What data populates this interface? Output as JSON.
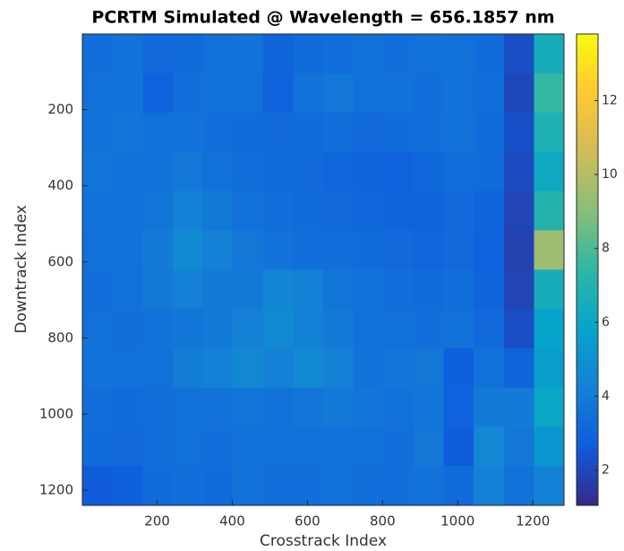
{
  "chart_data": {
    "type": "heatmap",
    "title": "PCRTM Simulated @ Wavelength = 656.1857 nm",
    "xlabel": "Crosstrack Index",
    "ylabel": "Downtrack Index",
    "xlim": [
      1,
      1283
    ],
    "ylim": [
      1,
      1240
    ],
    "xticks": [
      200,
      400,
      600,
      800,
      1000,
      1200
    ],
    "yticks": [
      200,
      400,
      600,
      800,
      1000,
      1200
    ],
    "y_reversed": true,
    "clim": [
      1.05,
      13.8
    ],
    "cticks": [
      2,
      4,
      6,
      8,
      10,
      12
    ],
    "colormap": [
      "#352a87",
      "#0f5cdd",
      "#1481d6",
      "#06a4ca",
      "#2eb7a4",
      "#87bf77",
      "#d1bb59",
      "#fec832",
      "#f9fb0e"
    ],
    "values": [
      [
        3.4,
        3.6,
        3.2,
        3.3,
        3.5,
        3.6,
        3.0,
        3.3,
        3.4,
        3.5,
        3.4,
        3.6,
        3.5,
        3.3,
        2.2,
        6.5
      ],
      [
        3.5,
        3.6,
        2.9,
        3.4,
        3.5,
        3.5,
        2.9,
        3.6,
        3.8,
        3.5,
        3.6,
        3.4,
        3.6,
        3.4,
        2.0,
        7.5
      ],
      [
        3.6,
        3.7,
        3.5,
        3.6,
        3.4,
        3.3,
        3.2,
        3.3,
        3.4,
        3.2,
        3.3,
        3.4,
        3.5,
        3.3,
        2.3,
        6.8
      ],
      [
        3.7,
        3.6,
        3.6,
        3.8,
        3.5,
        3.4,
        3.3,
        3.2,
        3.1,
        3.0,
        2.9,
        3.1,
        3.4,
        3.3,
        2.1,
        6.2
      ],
      [
        3.6,
        3.5,
        3.7,
        4.3,
        3.9,
        3.5,
        3.4,
        3.3,
        3.2,
        3.1,
        3.0,
        3.0,
        3.2,
        3.0,
        1.9,
        7.0
      ],
      [
        3.5,
        3.6,
        4.0,
        4.6,
        4.2,
        3.8,
        3.6,
        3.4,
        3.4,
        3.3,
        3.2,
        3.1,
        3.2,
        2.9,
        1.8,
        9.5
      ],
      [
        3.4,
        3.5,
        3.9,
        4.2,
        4.0,
        3.9,
        4.4,
        4.2,
        3.7,
        3.5,
        3.4,
        3.3,
        3.4,
        3.0,
        1.9,
        6.5
      ],
      [
        3.5,
        3.4,
        3.6,
        3.7,
        3.9,
        4.2,
        4.6,
        4.3,
        3.9,
        3.6,
        3.5,
        3.4,
        3.5,
        3.2,
        2.2,
        5.8
      ],
      [
        3.6,
        3.5,
        3.5,
        4.1,
        4.3,
        4.5,
        4.2,
        4.6,
        4.2,
        3.6,
        3.7,
        3.8,
        2.8,
        3.5,
        3.0,
        5.5
      ],
      [
        3.4,
        3.3,
        3.4,
        3.5,
        3.6,
        3.7,
        3.6,
        3.7,
        3.9,
        3.7,
        3.6,
        3.7,
        2.9,
        4.0,
        4.0,
        6.0
      ],
      [
        3.3,
        3.2,
        3.4,
        3.5,
        3.4,
        3.6,
        3.5,
        3.5,
        3.6,
        3.5,
        3.4,
        3.8,
        2.7,
        4.5,
        3.8,
        5.2
      ],
      [
        2.6,
        2.8,
        3.3,
        3.4,
        3.3,
        3.5,
        3.4,
        3.4,
        3.5,
        3.4,
        3.4,
        3.6,
        3.3,
        4.2,
        3.5,
        4.3
      ]
    ]
  }
}
